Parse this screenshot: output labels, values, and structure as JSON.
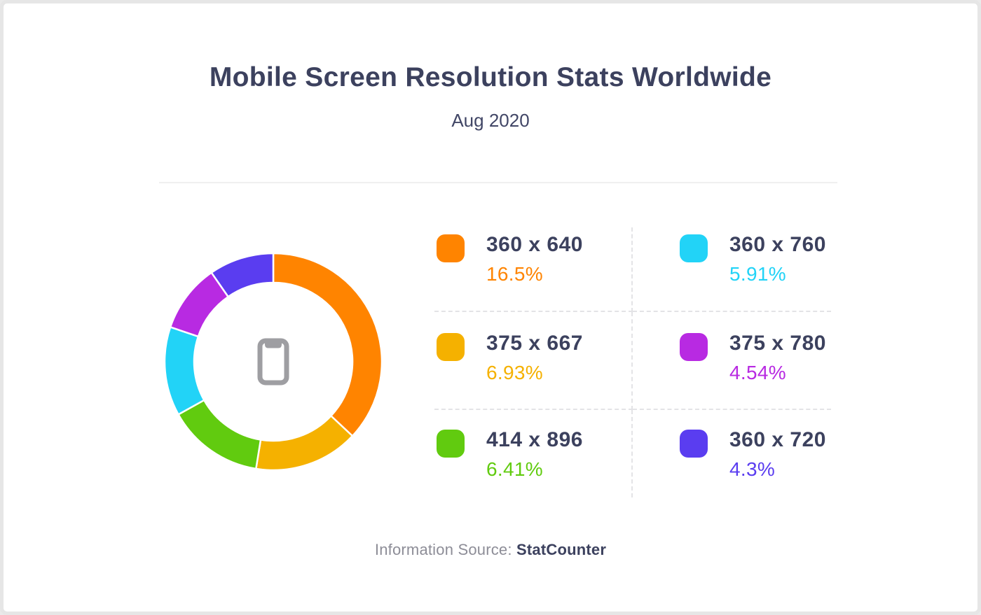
{
  "page": {
    "title": "Mobile Screen Resolution Stats Worldwide",
    "subtitle": "Aug 2020",
    "footer_label": "Information Source:",
    "footer_source": "StatCounter"
  },
  "chart_data": {
    "type": "pie",
    "variant": "donut",
    "title": "Mobile Screen Resolution Stats Worldwide",
    "subtitle": "Aug 2020",
    "unit": "%",
    "categories": [
      "360 x 640",
      "375 x 667",
      "414 x 896",
      "360 x 760",
      "375 x 780",
      "360 x 720"
    ],
    "values": [
      16.5,
      6.93,
      6.41,
      5.91,
      4.54,
      4.3
    ],
    "colors": [
      "#FF8400",
      "#F5B100",
      "#61CB0F",
      "#22D3F7",
      "#B82AE2",
      "#5A3DF0"
    ],
    "start_angle_deg": 0,
    "direction": "clockwise",
    "slices_normalized_to_full_circle": true,
    "segment_gap_color": "#FFFFFF",
    "legend_position": "right",
    "center_icon": "smartphone"
  },
  "legend": {
    "items": [
      {
        "label": "360 x 640",
        "pct": "16.5%",
        "color": "#FF8400"
      },
      {
        "label": "360 x 760",
        "pct": "5.91%",
        "color": "#22D3F7"
      },
      {
        "label": "375 x 667",
        "pct": "6.93%",
        "color": "#F5B100"
      },
      {
        "label": "375 x 780",
        "pct": "4.54%",
        "color": "#B82AE2"
      },
      {
        "label": "414 x 896",
        "pct": "6.41%",
        "color": "#61CB0F"
      },
      {
        "label": "360 x 720",
        "pct": "4.3%",
        "color": "#5A3DF0"
      }
    ]
  },
  "colors": {
    "heading_text": "#3C415E",
    "footer_label_text": "#8D8D97",
    "header_divider": "#F0F0F0",
    "legend_dotted_divider": "#E3E3E6",
    "phone_icon": "#9E9EA2",
    "card_border": "#E6E6E6",
    "card_background": "#FFFFFF"
  }
}
